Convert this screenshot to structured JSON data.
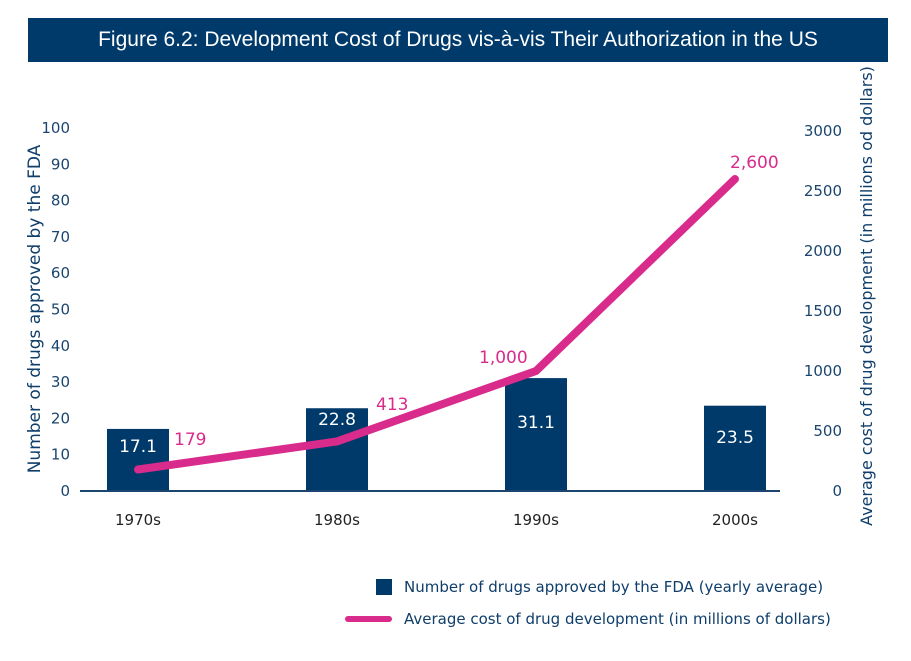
{
  "title": "Figure 6.2: Development Cost of Drugs vis-à-vis Their Authorization in the US",
  "colors": {
    "bar": "#003a6a",
    "line": "#d82b8c",
    "axis": "#1a456f",
    "title_bg": "#003a6a"
  },
  "chart_data": {
    "type": "bar+line",
    "title": "Figure 6.2: Development Cost of Drugs vis-à-vis Their Authorization in the US",
    "categories": [
      "1970s",
      "1980s",
      "1990s",
      "2000s"
    ],
    "series": [
      {
        "name": "Number of drugs approved by the FDA (yearly average)",
        "type": "bar",
        "axis": "left",
        "values": [
          17.1,
          22.8,
          31.1,
          23.5
        ],
        "labels": [
          "17.1",
          "22.8",
          "31.1",
          "23.5"
        ]
      },
      {
        "name": "Average cost of drug development (in millions of dollars)",
        "type": "line",
        "axis": "right",
        "values": [
          179,
          413,
          1000,
          2600
        ],
        "labels": [
          "179",
          "413",
          "1,000",
          "2,600"
        ]
      }
    ],
    "ylabel": "Number of drugs approved by the FDA",
    "ylim": [
      0,
      100
    ],
    "yticks": [
      0,
      10,
      20,
      30,
      40,
      50,
      60,
      70,
      80,
      90,
      100
    ],
    "y2label": "Average cost of drug development (in millions od dollars)",
    "y2lim": [
      0,
      3000
    ],
    "y2ticks": [
      0,
      500,
      1000,
      1500,
      2000,
      2500,
      3000
    ],
    "grid": false,
    "legend_position": "bottom-right"
  }
}
